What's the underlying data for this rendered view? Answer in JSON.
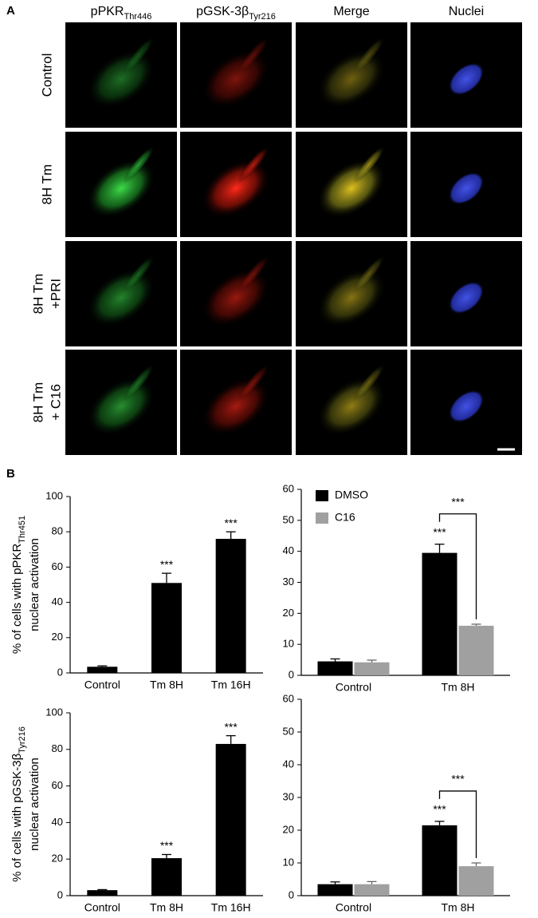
{
  "panel_labels": [
    "A",
    "B"
  ],
  "micrographs": {
    "columns": [
      {
        "text": "pPKR",
        "sub": "Thr446"
      },
      {
        "text": "pGSK-3β",
        "sub": "Tyr216"
      },
      {
        "text": "Merge"
      },
      {
        "text": "Nuclei"
      }
    ],
    "rows": [
      [
        "Control"
      ],
      [
        "8H Tm"
      ],
      [
        "8H Tm",
        "+PRI"
      ],
      [
        "8H Tm",
        "+ C16"
      ]
    ]
  },
  "chart_data": [
    {
      "type": "bar",
      "y_label": {
        "text": "% of cells with pPKR",
        "sub": "Thr451",
        "line2": "nuclear activation"
      },
      "categories": [
        "Control",
        "Tm 8H",
        "Tm 16H"
      ],
      "values": [
        3.5,
        51,
        76
      ],
      "errors": [
        0.5,
        5.5,
        4
      ],
      "sig_labels": [
        null,
        "***",
        "***"
      ],
      "color": "#000000",
      "ylim": [
        0,
        100
      ],
      "yticks": [
        0,
        20,
        40,
        60,
        80,
        100
      ]
    },
    {
      "type": "grouped",
      "categories": [
        "Control",
        "Tm 8H"
      ],
      "series": [
        {
          "name": "DMSO",
          "color": "#000000",
          "values": [
            4.5,
            39.5
          ],
          "errors": [
            0.8,
            2.8
          ]
        },
        {
          "name": "C16",
          "color": "#a0a0a0",
          "values": [
            4.2,
            16
          ],
          "errors": [
            0.7,
            0.5
          ]
        }
      ],
      "sig_labels": [
        null,
        "***"
      ],
      "bracket_labels": [
        null,
        "***"
      ],
      "legend": true,
      "ylim": [
        0,
        60
      ],
      "yticks": [
        0,
        10,
        20,
        30,
        40,
        50,
        60
      ]
    },
    {
      "type": "bar",
      "y_label": {
        "text": "% of cells with pGSK-3β",
        "sub": "Tyr216",
        "line2": "nuclear activation"
      },
      "categories": [
        "Control",
        "Tm 8H",
        "Tm 16H"
      ],
      "values": [
        3,
        20.5,
        83
      ],
      "errors": [
        0.3,
        2,
        4.5
      ],
      "sig_labels": [
        null,
        "***",
        "***"
      ],
      "color": "#000000",
      "ylim": [
        0,
        100
      ],
      "yticks": [
        0,
        20,
        40,
        60,
        80,
        100
      ]
    },
    {
      "type": "grouped",
      "categories": [
        "Control",
        "Tm 8H"
      ],
      "series": [
        {
          "color": "#000000",
          "values": [
            3.5,
            21.5
          ],
          "errors": [
            0.7,
            1.2
          ]
        },
        {
          "color": "#a0a0a0",
          "values": [
            3.5,
            9
          ],
          "errors": [
            0.8,
            1
          ]
        }
      ],
      "sig_labels": [
        null,
        "***"
      ],
      "bracket_labels": [
        null,
        "***"
      ],
      "legend": false,
      "ylim": [
        0,
        60
      ],
      "yticks": [
        0,
        10,
        20,
        30,
        40,
        50,
        60
      ]
    }
  ]
}
